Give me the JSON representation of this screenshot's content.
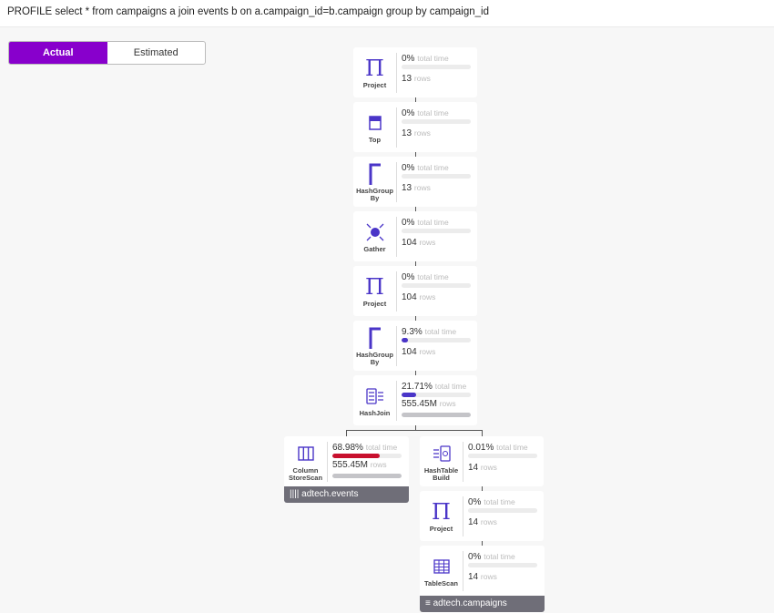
{
  "header": {
    "query": "PROFILE select * from campaigns a join events b on a.campaign_id=b.campaign group by campaign_id"
  },
  "toggle": {
    "actual": "Actual",
    "estimated": "Estimated",
    "selected": "Actual"
  },
  "labels": {
    "time": "total time",
    "rows": "rows"
  },
  "colors": {
    "accent": "#8800cc",
    "icon": "#4a35c8",
    "time_bar": "#4a35c8",
    "hot_bar": "#c8102e",
    "rows_bar": "#c4c4c8"
  },
  "nodes": [
    {
      "name": "Project",
      "icon": "pi-icon",
      "time": "0%",
      "time_fraction": 0,
      "rows": "13",
      "rows_fraction": 0
    },
    {
      "name": "Top",
      "icon": "top-icon",
      "time": "0%",
      "time_fraction": 0,
      "rows": "13",
      "rows_fraction": 0
    },
    {
      "name": "HashGroup By",
      "icon": "hashgroup-icon",
      "time": "0%",
      "time_fraction": 0,
      "rows": "13",
      "rows_fraction": 0
    },
    {
      "name": "Gather",
      "icon": "gather-icon",
      "time": "0%",
      "time_fraction": 0,
      "rows": "104",
      "rows_fraction": 0
    },
    {
      "name": "Project",
      "icon": "pi-icon",
      "time": "0%",
      "time_fraction": 0,
      "rows": "104",
      "rows_fraction": 0
    },
    {
      "name": "HashGroup By",
      "icon": "hashgroup-icon",
      "time": "9.3%",
      "time_fraction": 0.093,
      "rows": "104",
      "rows_fraction": 0
    },
    {
      "name": "HashJoin",
      "icon": "hashjoin-icon",
      "time": "21.71%",
      "time_fraction": 0.2171,
      "rows": "555.45M",
      "rows_fraction": 1
    },
    {
      "name": "Column StoreScan",
      "icon": "columnstore-icon",
      "time": "68.98%",
      "time_fraction": 0.6898,
      "rows": "555.45M",
      "rows_fraction": 1,
      "table": "adtech.events"
    },
    {
      "name": "HashTable Build",
      "icon": "hashtable-build-icon",
      "time": "0.01%",
      "time_fraction": 0.0001,
      "rows": "14",
      "rows_fraction": 0
    },
    {
      "name": "Project",
      "icon": "pi-icon",
      "time": "0%",
      "time_fraction": 0,
      "rows": "14",
      "rows_fraction": 0
    },
    {
      "name": "TableScan",
      "icon": "tablescan-icon",
      "time": "0%",
      "time_fraction": 0,
      "rows": "14",
      "rows_fraction": 0,
      "table": "adtech.campaigns"
    }
  ]
}
